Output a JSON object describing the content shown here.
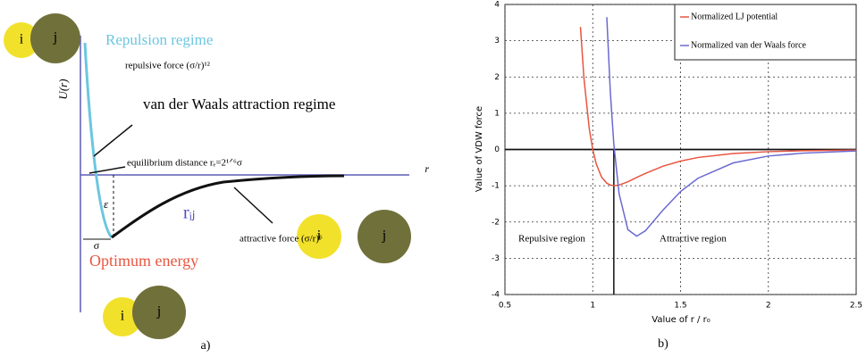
{
  "diagram": {
    "panel_label": "a)",
    "y_axis_label": "U(r)",
    "x_axis_label": "r",
    "repulsion_label": "Repulsion regime",
    "repulsive_force": "repulsive force (σ/r)¹²",
    "attraction_label": "van der Waals attraction regime",
    "equilibrium": "equilibrium distance  rₑ=2¹ᐟ⁶σ",
    "epsilon": "ε",
    "sigma": "σ",
    "rij": "rᵢⱼ",
    "attractive_force": "attractive force (σ/r)⁶",
    "optimum": "Optimum energy",
    "atoms": [
      [
        "i",
        "j"
      ],
      [
        "i",
        "j"
      ],
      [
        "i",
        "j"
      ]
    ]
  },
  "chart_data": {
    "type": "line",
    "panel_label": "b)",
    "x_label": "Value of r / r₀",
    "y_label": "Value of VDW force",
    "x": [
      0.93,
      0.95,
      0.98,
      1.0,
      1.02,
      1.05,
      1.08,
      1.1,
      1.12,
      1.15,
      1.2,
      1.25,
      1.3,
      1.4,
      1.5,
      1.6,
      1.8,
      2.0,
      2.2,
      2.5
    ],
    "series": [
      {
        "name": "Normalized LJ potential",
        "color": "#e8553f",
        "values": [
          3.38,
          1.96,
          0.58,
          0,
          -0.4,
          -0.76,
          -0.93,
          -0.98,
          -1.0,
          -0.98,
          -0.89,
          -0.77,
          -0.66,
          -0.46,
          -0.32,
          -0.22,
          -0.11,
          -0.06,
          -0.035,
          -0.016
        ]
      },
      {
        "name": "Normalized van der Waals force",
        "color": "#6a6ad0",
        "values": [
          null,
          null,
          null,
          null,
          null,
          null,
          3.65,
          1.59,
          0.15,
          -1.22,
          -2.21,
          -2.39,
          -2.24,
          -1.67,
          -1.16,
          -0.79,
          -0.37,
          -0.18,
          -0.1,
          -0.04
        ]
      }
    ],
    "annotations": [
      "Repulsive region",
      "Attractive region"
    ],
    "vline": 1.12,
    "xlim": [
      0.5,
      2.5
    ],
    "xticks": [
      0.5,
      1,
      1.5,
      2,
      2.5
    ],
    "ylim": [
      -4,
      4
    ],
    "yticks": [
      -4,
      -3,
      -2,
      -1,
      0,
      1,
      2,
      3,
      4
    ],
    "grid": true,
    "legend": "upper right"
  }
}
